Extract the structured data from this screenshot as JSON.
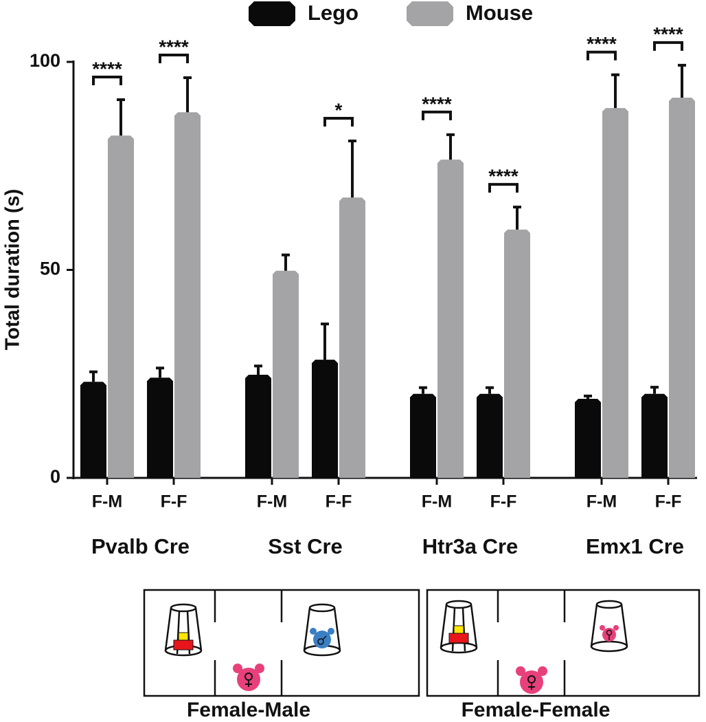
{
  "chart_data": {
    "type": "bar",
    "y_label": "Total duration (s)",
    "categories": [
      "F-M",
      "F-F",
      "F-M",
      "F-F",
      "F-M",
      "F-F",
      "F-M",
      "F-F"
    ],
    "groups": [
      "Pvalb Cre",
      "Sst Cre",
      "Htr3a Cre",
      "Emx1 Cre"
    ],
    "series": [
      {
        "name": "Lego",
        "color": "#0a0a0a",
        "values": [
          23.1,
          24.1,
          24.8,
          28.4,
          20.2,
          20.2,
          19.0,
          20.2
        ],
        "errors": [
          2.4,
          2.3,
          2.1,
          8.6,
          1.5,
          1.5,
          0.7,
          1.6
        ]
      },
      {
        "name": "Mouse",
        "color": "#a4a4a6",
        "values": [
          82.3,
          87.9,
          49.8,
          67.4,
          76.5,
          59.7,
          88.9,
          91.4
        ],
        "errors": [
          8.6,
          8.3,
          3.8,
          13.6,
          6.0,
          5.4,
          8.0,
          7.8
        ]
      }
    ],
    "significance": [
      "****",
      "****",
      null,
      "*",
      "****",
      "****",
      "****",
      "****"
    ],
    "ylim": [
      0,
      100
    ],
    "yticks": [
      0,
      50,
      100
    ]
  },
  "diagrams": [
    {
      "label": "Female-Male"
    },
    {
      "label": "Female-Female"
    }
  ]
}
